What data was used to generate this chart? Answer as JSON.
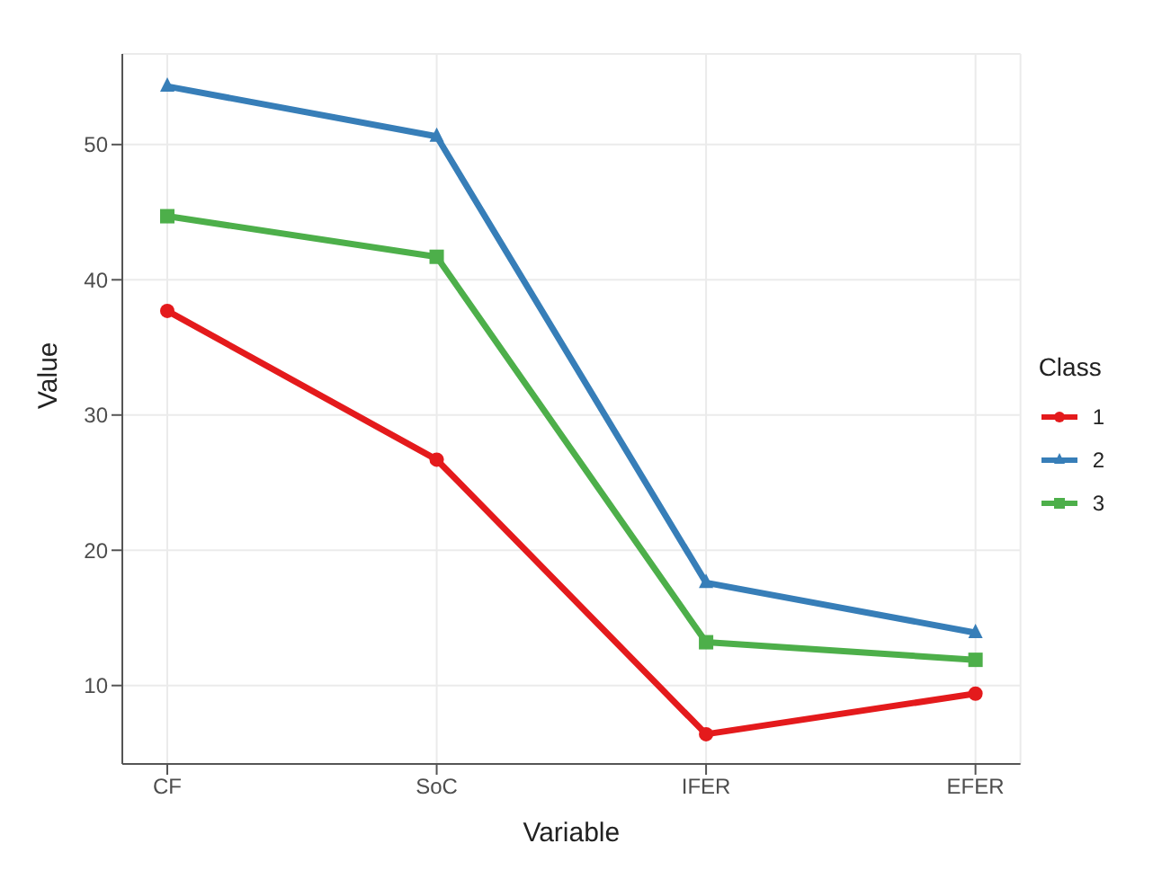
{
  "chart_data": {
    "type": "line",
    "xlabel": "Variable",
    "ylabel": "Value",
    "legend_title": "Class",
    "categories": [
      "CF",
      "SoC",
      "IFER",
      "EFER"
    ],
    "series": [
      {
        "name": "1",
        "color": "#e41a1c",
        "marker": "circle",
        "values": [
          37.7,
          26.7,
          6.4,
          9.4
        ]
      },
      {
        "name": "2",
        "color": "#377eb8",
        "marker": "triangle",
        "values": [
          54.3,
          50.6,
          17.6,
          13.9
        ]
      },
      {
        "name": "3",
        "color": "#4daf4a",
        "marker": "square",
        "values": [
          44.7,
          41.7,
          13.2,
          11.9
        ]
      }
    ],
    "ylim": [
      4.2,
      56.7
    ],
    "yticks": [
      10,
      20,
      30,
      40,
      50
    ],
    "grid": true,
    "legend": "right",
    "line_style": "solid"
  }
}
